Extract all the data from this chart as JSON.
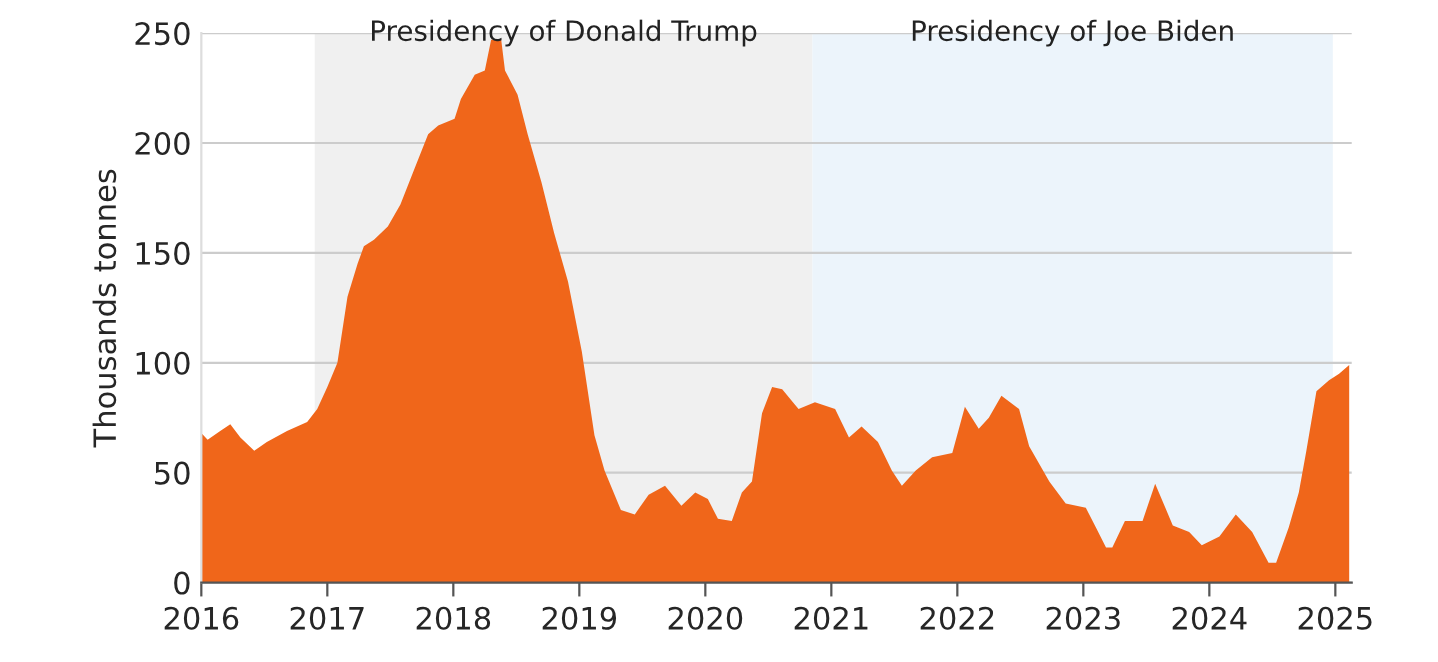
{
  "chart_data": {
    "type": "area",
    "ylabel": "Thousands tonnes",
    "x": [
      2016.0,
      2016.05,
      2016.15,
      2016.23,
      2016.31,
      2016.42,
      2016.52,
      2016.68,
      2016.84,
      2016.92,
      2017.0,
      2017.08,
      2017.16,
      2017.24,
      2017.29,
      2017.37,
      2017.48,
      2017.58,
      2017.69,
      2017.8,
      2017.88,
      2018.01,
      2018.06,
      2018.17,
      2018.25,
      2018.3,
      2018.38,
      2018.41,
      2018.51,
      2018.59,
      2018.7,
      2018.8,
      2018.91,
      2019.02,
      2019.12,
      2019.2,
      2019.33,
      2019.44,
      2019.55,
      2019.68,
      2019.81,
      2019.92,
      2020.02,
      2020.1,
      2020.21,
      2020.29,
      2020.37,
      2020.45,
      2020.53,
      2020.61,
      2020.71,
      2020.74,
      2020.87,
      2021.03,
      2021.14,
      2021.24,
      2021.37,
      2021.48,
      2021.56,
      2021.67,
      2021.8,
      2021.96,
      2022.06,
      2022.17,
      2022.25,
      2022.35,
      2022.49,
      2022.57,
      2022.73,
      2022.86,
      2023.02,
      2023.1,
      2023.18,
      2023.23,
      2023.33,
      2023.47,
      2023.57,
      2023.71,
      2023.84,
      2023.94,
      2024.08,
      2024.21,
      2024.34,
      2024.47,
      2024.53,
      2024.63,
      2024.71,
      2024.77,
      2024.85,
      2024.95,
      2025.03,
      2025.11
    ],
    "series": [
      {
        "color": "#f0661a",
        "values": [
          68,
          65,
          69,
          72,
          66,
          60,
          64,
          69,
          73,
          79,
          89,
          100,
          130,
          145,
          153,
          156,
          162,
          172,
          188,
          204,
          208,
          211,
          220,
          231,
          233,
          247,
          247,
          233,
          222,
          204,
          182,
          159,
          137,
          105,
          67,
          51,
          33,
          31,
          40,
          44,
          35,
          41,
          38,
          29,
          28,
          41,
          46,
          77,
          89,
          88,
          81,
          79,
          82,
          79,
          66,
          71,
          64,
          51,
          44,
          51,
          57,
          59,
          80,
          70,
          75,
          85,
          79,
          62,
          46,
          36,
          34,
          25,
          16,
          16,
          28,
          28,
          45,
          26,
          23,
          17,
          21,
          31,
          23,
          9,
          9,
          25,
          41,
          60,
          87,
          92,
          95,
          99
        ]
      }
    ],
    "xlim": [
      2016,
      2025.13
    ],
    "xticks": [
      2016,
      2017,
      2018,
      2019,
      2020,
      2021,
      2022,
      2023,
      2024,
      2025
    ],
    "ylim": [
      0,
      250
    ],
    "yticks": [
      0,
      50,
      100,
      150,
      200,
      250
    ],
    "grid": "y",
    "legend": false,
    "bands": [
      {
        "axis": "x",
        "from": 2016.9,
        "to": 2020.85,
        "label": "Presidency of Donald Trump",
        "color": "#f0f0f0"
      },
      {
        "axis": "x",
        "from": 2020.85,
        "to": 2024.98,
        "label": "Presidency of Joe Biden",
        "color": "#ecf4fb"
      }
    ]
  }
}
